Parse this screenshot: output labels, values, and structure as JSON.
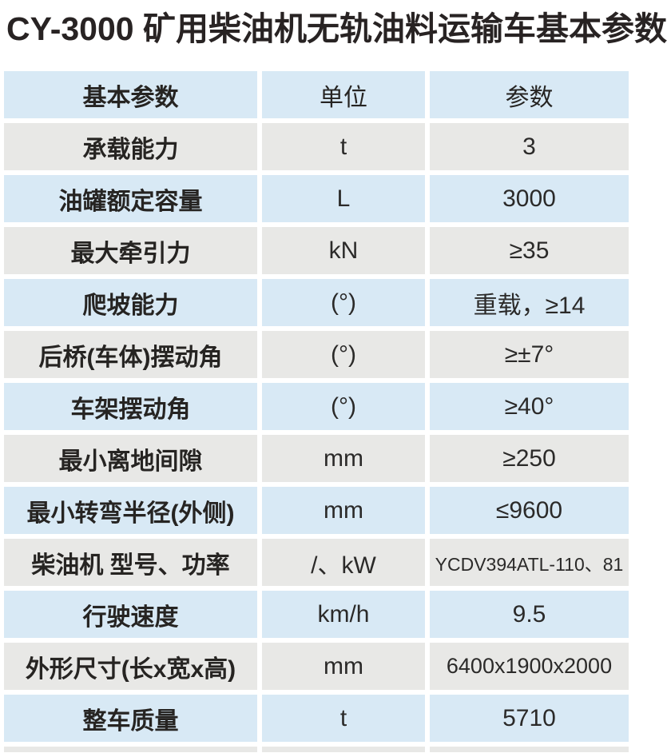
{
  "title": "CY-3000 矿用柴油机无轨油料运输车基本参数",
  "table": {
    "headers": [
      "基本参数",
      "单位",
      "参数"
    ],
    "rows": [
      {
        "param": "承载能力",
        "unit": "t",
        "value": "3"
      },
      {
        "param": "油罐额定容量",
        "unit": "L",
        "value": "3000"
      },
      {
        "param": "最大牵引力",
        "unit": "kN",
        "value": "≥35"
      },
      {
        "param": "爬坡能力",
        "unit": "(°)",
        "value": "重载，≥14"
      },
      {
        "param": "后桥(车体)摆动角",
        "unit": "(°)",
        "value": "≥±7°"
      },
      {
        "param": "车架摆动角",
        "unit": "(°)",
        "value": "≥40°"
      },
      {
        "param": "最小离地间隙",
        "unit": "mm",
        "value": "≥250"
      },
      {
        "param": "最小转弯半径(外侧)",
        "unit": "mm",
        "value": "≤9600"
      },
      {
        "param": "柴油机 型号、功率",
        "unit": "/、kW",
        "value": "YCDV394ATL-110、81"
      },
      {
        "param": "行驶速度",
        "unit": "km/h",
        "value": "9.5"
      },
      {
        "param": "外形尺寸(长x宽x高)",
        "unit": "mm",
        "value": "6400x1900x2000"
      },
      {
        "param": "整车质量",
        "unit": "t",
        "value": "5710"
      }
    ]
  },
  "colors": {
    "row_blue": "#d8e9f5",
    "row_gray": "#e8e8e6",
    "text": "#2b2a29",
    "title_text": "#282323",
    "background": "#ffffff"
  }
}
